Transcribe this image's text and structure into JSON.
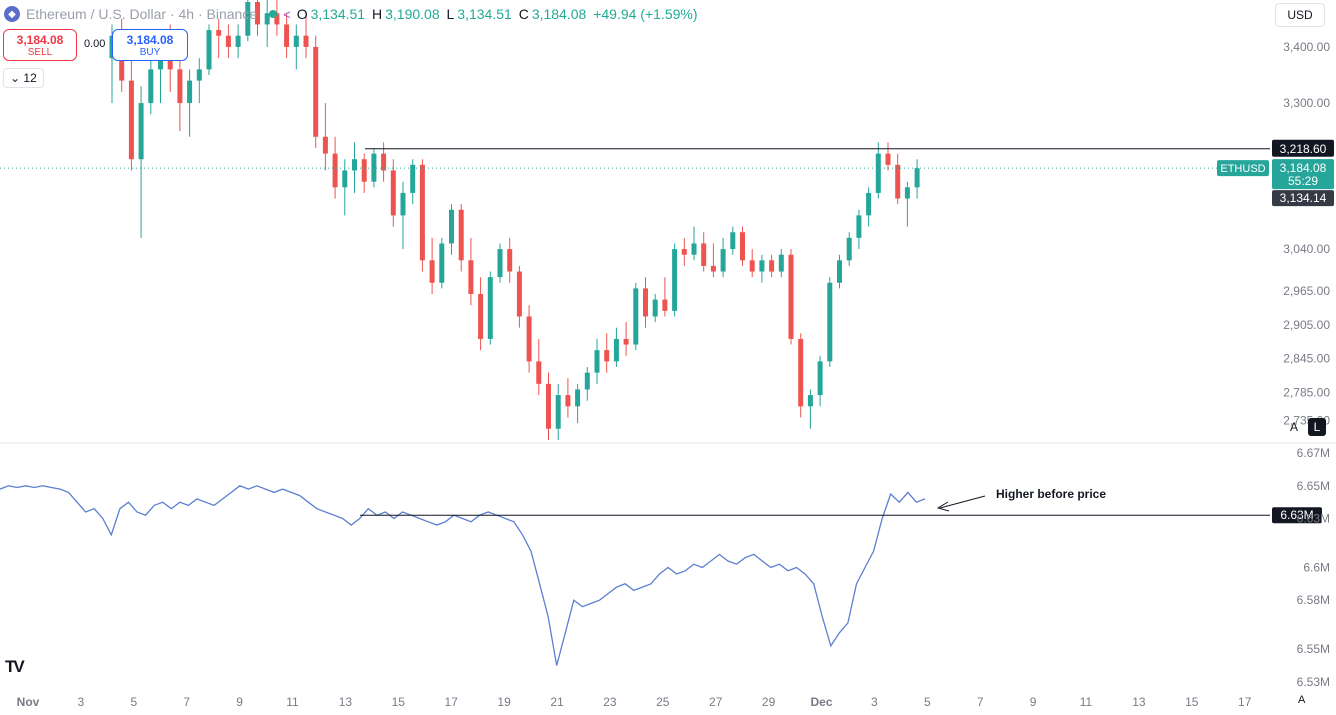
{
  "header": {
    "symbol_title": "Ethereum / U.S. Dollar · 4h · Binance",
    "logo_icon": "ethereum-logo-icon",
    "status_icon": "market-open-dot-icon",
    "share_icon": "share-icon",
    "ohlc": {
      "open_label": "O",
      "open": "3,134.51",
      "high_label": "H",
      "high": "3,190.08",
      "low_label": "L",
      "low": "3,134.51",
      "close_label": "C",
      "close": "3,184.08",
      "change": "+49.94 (+1.59%)"
    }
  },
  "trade": {
    "sell_price": "3,184.08",
    "sell_label": "SELL",
    "spread": "0.00",
    "buy_price": "3,184.08",
    "buy_label": "BUY",
    "quantity": "12",
    "quantity_icon": "chevron-down-icon"
  },
  "currency": "USD",
  "scale_buttons": {
    "auto": "A",
    "log": "L"
  },
  "branding": {
    "logo_text": "TV"
  },
  "time_axis_mode": "A",
  "colors": {
    "up": "#26a69a",
    "down": "#ef5350",
    "indicator": "#5b7fd1",
    "accent": "#2962ff"
  },
  "chart_data": [
    {
      "type": "candlestick",
      "symbol": "ETHUSD",
      "interval": "4h",
      "x_axis": {
        "ticks": [
          "Nov",
          "3",
          "5",
          "7",
          "9",
          "11",
          "13",
          "15",
          "17",
          "19",
          "21",
          "23",
          "25",
          "27",
          "29",
          "Dec",
          "3",
          "5",
          "7",
          "9",
          "11",
          "13",
          "15",
          "17",
          "A"
        ]
      },
      "y_axis": {
        "ticks": [
          "3,400.00",
          "3,300.00",
          "3,218.60",
          "3,184.08",
          "3,134.14",
          "3,040.00",
          "2,965.00",
          "2,905.00",
          "2,845.00",
          "2,785.00",
          "2,735.00"
        ],
        "ylim": [
          2700,
          3480
        ]
      },
      "ohlc": [
        [
          3380,
          3440,
          3300,
          3420
        ],
        [
          3420,
          3450,
          3320,
          3340
        ],
        [
          3340,
          3390,
          3180,
          3200
        ],
        [
          3200,
          3330,
          3060,
          3300
        ],
        [
          3300,
          3400,
          3280,
          3360
        ],
        [
          3360,
          3420,
          3300,
          3380
        ],
        [
          3380,
          3440,
          3320,
          3360
        ],
        [
          3360,
          3400,
          3250,
          3300
        ],
        [
          3300,
          3360,
          3240,
          3340
        ],
        [
          3340,
          3380,
          3300,
          3360
        ],
        [
          3360,
          3440,
          3350,
          3430
        ],
        [
          3430,
          3450,
          3380,
          3420
        ],
        [
          3420,
          3440,
          3380,
          3400
        ],
        [
          3400,
          3440,
          3380,
          3420
        ],
        [
          3420,
          3500,
          3410,
          3480
        ],
        [
          3480,
          3500,
          3420,
          3440
        ],
        [
          3440,
          3500,
          3400,
          3460
        ],
        [
          3460,
          3500,
          3420,
          3440
        ],
        [
          3440,
          3460,
          3380,
          3400
        ],
        [
          3400,
          3440,
          3360,
          3420
        ],
        [
          3420,
          3460,
          3380,
          3400
        ],
        [
          3400,
          3420,
          3220,
          3240
        ],
        [
          3240,
          3300,
          3180,
          3210
        ],
        [
          3210,
          3240,
          3130,
          3150
        ],
        [
          3150,
          3200,
          3100,
          3180
        ],
        [
          3180,
          3230,
          3140,
          3200
        ],
        [
          3200,
          3210,
          3140,
          3160
        ],
        [
          3160,
          3220,
          3150,
          3210
        ],
        [
          3210,
          3230,
          3160,
          3180
        ],
        [
          3180,
          3200,
          3080,
          3100
        ],
        [
          3100,
          3160,
          3040,
          3140
        ],
        [
          3140,
          3200,
          3120,
          3190
        ],
        [
          3190,
          3200,
          3000,
          3020
        ],
        [
          3020,
          3060,
          2960,
          2980
        ],
        [
          2980,
          3060,
          2970,
          3050
        ],
        [
          3050,
          3120,
          3030,
          3110
        ],
        [
          3110,
          3120,
          3000,
          3020
        ],
        [
          3020,
          3060,
          2940,
          2960
        ],
        [
          2960,
          2990,
          2860,
          2880
        ],
        [
          2880,
          3000,
          2870,
          2990
        ],
        [
          2990,
          3050,
          2980,
          3040
        ],
        [
          3040,
          3060,
          2980,
          3000
        ],
        [
          3000,
          3010,
          2900,
          2920
        ],
        [
          2920,
          2940,
          2820,
          2840
        ],
        [
          2840,
          2880,
          2780,
          2800
        ],
        [
          2800,
          2820,
          2700,
          2720
        ],
        [
          2720,
          2800,
          2700,
          2780
        ],
        [
          2780,
          2810,
          2740,
          2760
        ],
        [
          2760,
          2800,
          2730,
          2790
        ],
        [
          2790,
          2830,
          2770,
          2820
        ],
        [
          2820,
          2880,
          2800,
          2860
        ],
        [
          2860,
          2890,
          2820,
          2840
        ],
        [
          2840,
          2900,
          2830,
          2880
        ],
        [
          2880,
          2910,
          2850,
          2870
        ],
        [
          2870,
          2980,
          2860,
          2970
        ],
        [
          2970,
          2990,
          2900,
          2920
        ],
        [
          2920,
          2960,
          2910,
          2950
        ],
        [
          2950,
          2990,
          2920,
          2930
        ],
        [
          2930,
          3050,
          2920,
          3040
        ],
        [
          3040,
          3060,
          3010,
          3030
        ],
        [
          3030,
          3080,
          3020,
          3050
        ],
        [
          3050,
          3070,
          3000,
          3010
        ],
        [
          3010,
          3050,
          2990,
          3000
        ],
        [
          3000,
          3060,
          2990,
          3040
        ],
        [
          3040,
          3080,
          3030,
          3070
        ],
        [
          3070,
          3080,
          3010,
          3020
        ],
        [
          3020,
          3040,
          2990,
          3000
        ],
        [
          3000,
          3030,
          2980,
          3020
        ],
        [
          3020,
          3030,
          2990,
          3000
        ],
        [
          3000,
          3040,
          2990,
          3030
        ],
        [
          3030,
          3040,
          2870,
          2880
        ],
        [
          2880,
          2890,
          2740,
          2760
        ],
        [
          2760,
          2790,
          2720,
          2780
        ],
        [
          2780,
          2850,
          2760,
          2840
        ],
        [
          2840,
          2990,
          2830,
          2980
        ],
        [
          2980,
          3030,
          2970,
          3020
        ],
        [
          3020,
          3070,
          3010,
          3060
        ],
        [
          3060,
          3110,
          3040,
          3100
        ],
        [
          3100,
          3150,
          3080,
          3140
        ],
        [
          3140,
          3230,
          3130,
          3210
        ],
        [
          3210,
          3230,
          3180,
          3190
        ],
        [
          3190,
          3210,
          3120,
          3130
        ],
        [
          3130,
          3160,
          3080,
          3150
        ],
        [
          3150,
          3200,
          3130,
          3184
        ]
      ],
      "reference_levels": {
        "horizontal_line": 3218.6,
        "last_price_symbol": "ETHUSD",
        "last_price": "3,184.08",
        "countdown": "55:29",
        "prev_close_label": "3,134.14",
        "marked_level": "3,218.60"
      }
    },
    {
      "type": "line",
      "name": "",
      "y_axis": {
        "ticks": [
          "6.67M",
          "6.65M",
          "6.63M",
          "6.6M",
          "6.58M",
          "6.55M",
          "6.53M"
        ],
        "ylim": [
          6.525,
          6.675
        ]
      },
      "values": [
        6.648,
        6.65,
        6.649,
        6.65,
        6.649,
        6.65,
        6.649,
        6.648,
        6.646,
        6.64,
        6.634,
        6.636,
        6.63,
        6.62,
        6.636,
        6.64,
        6.634,
        6.632,
        6.638,
        6.64,
        6.636,
        6.64,
        6.638,
        6.642,
        6.64,
        6.638,
        6.642,
        6.646,
        6.65,
        6.648,
        6.65,
        6.648,
        6.646,
        6.648,
        6.646,
        6.644,
        6.64,
        6.636,
        6.634,
        6.632,
        6.63,
        6.626,
        6.63,
        6.636,
        6.632,
        6.634,
        6.63,
        6.634,
        6.632,
        6.63,
        6.628,
        6.626,
        6.628,
        6.632,
        6.63,
        6.628,
        6.632,
        6.634,
        6.632,
        6.63,
        6.628,
        6.62,
        6.61,
        6.59,
        6.57,
        6.54,
        6.56,
        6.58,
        6.576,
        6.578,
        6.58,
        6.584,
        6.588,
        6.59,
        6.586,
        6.588,
        6.59,
        6.596,
        6.6,
        6.596,
        6.598,
        6.602,
        6.6,
        6.604,
        6.608,
        6.604,
        6.602,
        6.606,
        6.608,
        6.604,
        6.6,
        6.602,
        6.598,
        6.6,
        6.596,
        6.59,
        6.57,
        6.552,
        6.56,
        6.566,
        6.59,
        6.6,
        6.61,
        6.63,
        6.645,
        6.64,
        6.646,
        6.64,
        6.642
      ],
      "reference_level": {
        "value": "6.63M",
        "line": 6.632
      },
      "annotation": "Higher before price"
    }
  ]
}
